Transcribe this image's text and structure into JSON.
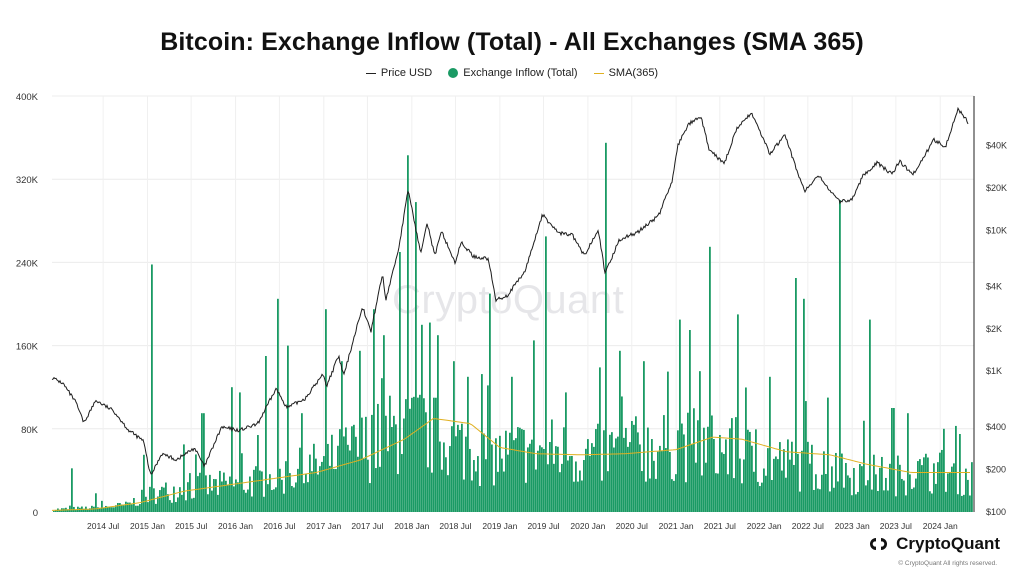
{
  "chart_data": {
    "type": "bar",
    "title": "Bitcoin: Exchange Inflow (Total) - All Exchanges (SMA 365)",
    "legend_position": "top-center",
    "series": [
      {
        "name": "Price USD",
        "kind": "line",
        "axis": "right",
        "color": "#222222"
      },
      {
        "name": "Exchange Inflow (Total)",
        "kind": "bar",
        "axis": "left",
        "color": "#1a9a64"
      },
      {
        "name": "SMA(365)",
        "kind": "line",
        "axis": "left",
        "color": "#e0b020"
      }
    ],
    "y_left": {
      "ticks": [
        "0",
        "80K",
        "160K",
        "240K",
        "320K",
        "400K"
      ],
      "range": [
        0,
        400000
      ]
    },
    "y_right": {
      "scale": "log",
      "ticks": [
        "$100",
        "$200",
        "$400",
        "$1K",
        "$2K",
        "$4K",
        "$10K",
        "$20K",
        "$40K"
      ],
      "tick_values": [
        100,
        200,
        400,
        1000,
        2000,
        4000,
        10000,
        20000,
        40000
      ],
      "range": [
        100,
        90000
      ]
    },
    "x": {
      "range": [
        "2013-12-01",
        "2024-05-20"
      ],
      "ticks": [
        "2014 Jul",
        "2015 Jan",
        "2015 Jul",
        "2016 Jan",
        "2016 Jul",
        "2017 Jan",
        "2017 Jul",
        "2018 Jan",
        "2018 Jul",
        "2019 Jan",
        "2019 Jul",
        "2020 Jan",
        "2020 Jul",
        "2021 Jan",
        "2021 Jul",
        "2022 Jan",
        "2022 Jul",
        "2023 Jan",
        "2023 Jul",
        "2024 Jan"
      ],
      "tick_dates": [
        "2014-07-01",
        "2015-01-01",
        "2015-07-01",
        "2016-01-01",
        "2016-07-01",
        "2017-01-01",
        "2017-07-01",
        "2018-01-01",
        "2018-07-01",
        "2019-01-01",
        "2019-07-01",
        "2020-01-01",
        "2020-07-01",
        "2021-01-01",
        "2021-07-01",
        "2022-01-01",
        "2022-07-01",
        "2023-01-01",
        "2023-07-01",
        "2024-01-01"
      ]
    },
    "inflow_base": [
      [
        "2013-12-01",
        3000
      ],
      [
        "2014-06-01",
        5000
      ],
      [
        "2014-10-01",
        8000
      ],
      [
        "2015-01-01",
        20000
      ],
      [
        "2015-06-01",
        28000
      ],
      [
        "2016-01-01",
        32000
      ],
      [
        "2016-06-01",
        40000
      ],
      [
        "2017-01-01",
        55000
      ],
      [
        "2017-06-01",
        75000
      ],
      [
        "2018-01-01",
        100000
      ],
      [
        "2018-06-01",
        80000
      ],
      [
        "2019-01-01",
        65000
      ],
      [
        "2019-06-01",
        75000
      ],
      [
        "2019-12-01",
        65000
      ],
      [
        "2020-06-01",
        70000
      ],
      [
        "2021-01-01",
        80000
      ],
      [
        "2021-06-01",
        75000
      ],
      [
        "2022-01-01",
        60000
      ],
      [
        "2022-06-01",
        55000
      ],
      [
        "2023-01-01",
        45000
      ],
      [
        "2023-06-01",
        42000
      ],
      [
        "2024-01-01",
        48000
      ],
      [
        "2024-05-20",
        40000
      ]
    ],
    "inflow_spikes": [
      [
        "2014-02-15",
        42000
      ],
      [
        "2014-06-01",
        18000
      ],
      [
        "2014-12-15",
        55000
      ],
      [
        "2015-01-14",
        238000
      ],
      [
        "2015-06-01",
        65000
      ],
      [
        "2015-08-15",
        95000
      ],
      [
        "2015-12-15",
        120000
      ],
      [
        "2016-01-15",
        115000
      ],
      [
        "2016-05-01",
        150000
      ],
      [
        "2016-06-20",
        205000
      ],
      [
        "2016-08-02",
        160000
      ],
      [
        "2016-10-01",
        95000
      ],
      [
        "2017-01-05",
        195000
      ],
      [
        "2017-03-10",
        145000
      ],
      [
        "2017-05-25",
        155000
      ],
      [
        "2017-07-20",
        195000
      ],
      [
        "2017-09-05",
        170000
      ],
      [
        "2017-11-12",
        250000
      ],
      [
        "2017-12-08",
        343000
      ],
      [
        "2018-01-16",
        298000
      ],
      [
        "2018-02-06",
        180000
      ],
      [
        "2018-04-15",
        170000
      ],
      [
        "2018-06-24",
        145000
      ],
      [
        "2018-08-15",
        130000
      ],
      [
        "2018-11-20",
        210000
      ],
      [
        "2019-02-15",
        130000
      ],
      [
        "2019-05-15",
        165000
      ],
      [
        "2019-07-10",
        265000
      ],
      [
        "2019-09-25",
        115000
      ],
      [
        "2020-03-12",
        355000
      ],
      [
        "2020-05-10",
        155000
      ],
      [
        "2020-08-15",
        145000
      ],
      [
        "2020-11-20",
        135000
      ],
      [
        "2021-01-11",
        185000
      ],
      [
        "2021-02-20",
        175000
      ],
      [
        "2021-05-19",
        255000
      ],
      [
        "2021-09-07",
        190000
      ],
      [
        "2022-01-22",
        130000
      ],
      [
        "2022-05-10",
        225000
      ],
      [
        "2022-06-13",
        205000
      ],
      [
        "2022-09-15",
        110000
      ],
      [
        "2022-11-09",
        300000
      ],
      [
        "2023-03-10",
        185000
      ],
      [
        "2023-06-15",
        100000
      ],
      [
        "2023-08-17",
        95000
      ],
      [
        "2024-01-15",
        80000
      ],
      [
        "2024-03-15",
        75000
      ]
    ],
    "sma_365": [
      [
        "2013-12-01",
        1500
      ],
      [
        "2014-06-01",
        3000
      ],
      [
        "2014-12-01",
        9000
      ],
      [
        "2015-06-01",
        20000
      ],
      [
        "2015-12-01",
        26000
      ],
      [
        "2016-06-01",
        32000
      ],
      [
        "2016-12-01",
        38000
      ],
      [
        "2017-06-01",
        50000
      ],
      [
        "2017-12-01",
        70000
      ],
      [
        "2018-04-01",
        90000
      ],
      [
        "2018-09-01",
        85000
      ],
      [
        "2019-01-01",
        62000
      ],
      [
        "2019-06-01",
        56000
      ],
      [
        "2019-12-01",
        55000
      ],
      [
        "2020-06-01",
        56000
      ],
      [
        "2021-01-01",
        60000
      ],
      [
        "2021-06-01",
        72000
      ],
      [
        "2021-10-01",
        70000
      ],
      [
        "2022-04-01",
        58000
      ],
      [
        "2022-10-01",
        55000
      ],
      [
        "2023-03-01",
        46000
      ],
      [
        "2023-09-01",
        38000
      ],
      [
        "2024-05-20",
        38000
      ]
    ],
    "price_usd": [
      [
        "2013-12-01",
        900
      ],
      [
        "2014-01-15",
        820
      ],
      [
        "2014-03-10",
        600
      ],
      [
        "2014-04-12",
        430
      ],
      [
        "2014-06-01",
        620
      ],
      [
        "2014-08-15",
        520
      ],
      [
        "2014-10-15",
        380
      ],
      [
        "2014-12-15",
        320
      ],
      [
        "2015-01-14",
        180
      ],
      [
        "2015-03-01",
        260
      ],
      [
        "2015-05-01",
        235
      ],
      [
        "2015-07-15",
        285
      ],
      [
        "2015-08-25",
        210
      ],
      [
        "2015-11-04",
        400
      ],
      [
        "2016-01-15",
        380
      ],
      [
        "2016-04-01",
        420
      ],
      [
        "2016-06-17",
        750
      ],
      [
        "2016-08-02",
        550
      ],
      [
        "2016-10-15",
        640
      ],
      [
        "2016-12-31",
        960
      ],
      [
        "2017-01-12",
        780
      ],
      [
        "2017-03-03",
        1280
      ],
      [
        "2017-03-25",
        930
      ],
      [
        "2017-06-10",
        2900
      ],
      [
        "2017-07-15",
        1900
      ],
      [
        "2017-09-01",
        4900
      ],
      [
        "2017-09-15",
        3200
      ],
      [
        "2017-11-08",
        7500
      ],
      [
        "2017-12-17",
        19500
      ],
      [
        "2018-02-06",
        6900
      ],
      [
        "2018-03-05",
        11500
      ],
      [
        "2018-04-06",
        6600
      ],
      [
        "2018-05-05",
        9800
      ],
      [
        "2018-06-29",
        5900
      ],
      [
        "2018-07-25",
        8200
      ],
      [
        "2018-09-15",
        6500
      ],
      [
        "2018-11-14",
        6300
      ],
      [
        "2018-12-15",
        3200
      ],
      [
        "2019-02-01",
        3450
      ],
      [
        "2019-04-15",
        5100
      ],
      [
        "2019-06-26",
        12900
      ],
      [
        "2019-09-01",
        9600
      ],
      [
        "2019-10-28",
        9300
      ],
      [
        "2019-12-17",
        6600
      ],
      [
        "2020-02-13",
        10300
      ],
      [
        "2020-03-12",
        4900
      ],
      [
        "2020-05-10",
        8600
      ],
      [
        "2020-07-25",
        9700
      ],
      [
        "2020-10-21",
        12800
      ],
      [
        "2020-12-17",
        23000
      ],
      [
        "2021-01-08",
        40000
      ],
      [
        "2021-02-21",
        57000
      ],
      [
        "2021-04-14",
        63500
      ],
      [
        "2021-05-19",
        37000
      ],
      [
        "2021-07-20",
        29800
      ],
      [
        "2021-09-06",
        51700
      ],
      [
        "2021-11-10",
        68500
      ],
      [
        "2022-01-24",
        35000
      ],
      [
        "2022-03-29",
        47500
      ],
      [
        "2022-05-12",
        28000
      ],
      [
        "2022-06-18",
        19000
      ],
      [
        "2022-08-15",
        24300
      ],
      [
        "2022-11-09",
        16000
      ],
      [
        "2022-12-31",
        16500
      ],
      [
        "2023-02-15",
        24500
      ],
      [
        "2023-04-14",
        30400
      ],
      [
        "2023-06-15",
        25000
      ],
      [
        "2023-07-15",
        31000
      ],
      [
        "2023-09-11",
        25000
      ],
      [
        "2023-12-06",
        44000
      ],
      [
        "2024-01-23",
        39500
      ],
      [
        "2024-03-14",
        73000
      ],
      [
        "2024-05-01",
        57000
      ],
      [
        "2024-05-20",
        67000
      ]
    ]
  },
  "brand": {
    "name": "CryptoQuant",
    "copyright": "© CryptoQuant All rights reserved.",
    "watermark": "CryptoQuant"
  }
}
